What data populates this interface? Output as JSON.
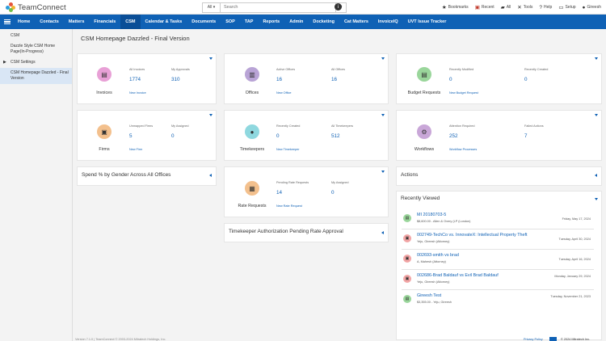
{
  "app": {
    "name": "TeamConnect"
  },
  "search": {
    "scope": "All",
    "placeholder": "Search"
  },
  "utils": [
    {
      "label": "Bookmarks",
      "icon": "star-icon"
    },
    {
      "label": "Recent",
      "icon": "recent-icon"
    },
    {
      "label": "All",
      "icon": "folder-icon"
    },
    {
      "label": "Tools",
      "icon": "tools-icon"
    },
    {
      "label": "Help",
      "icon": "question-icon"
    },
    {
      "label": "Setup",
      "icon": "monitor-icon"
    },
    {
      "label": "Gireesh",
      "icon": "user-icon"
    }
  ],
  "nav": [
    "Home",
    "Contacts",
    "Matters",
    "Financials",
    "CSM",
    "Calendar & Tasks",
    "Documents",
    "SOP",
    "TAP",
    "Reports",
    "Admin",
    "Docketing",
    "Cat Matters",
    "InvoiceIQ",
    "UVT Issue Tracker"
  ],
  "nav_active": "CSM",
  "sidebar": {
    "items": [
      {
        "label": "CSM"
      },
      {
        "label": "Dazzle Style CSM Home Page(In-Progress)"
      },
      {
        "label": "CSM Settings"
      },
      {
        "label": "CSM Homepage Dazzled - Final Version"
      }
    ]
  },
  "page": {
    "title": "CSM Homepage Dazzled - Final Version"
  },
  "tiles": {
    "invoices": {
      "name": "Invoices",
      "label1": "All Invoices",
      "value1": "1774",
      "label2": "My Approvals",
      "value2": "310",
      "link": "New Invoice",
      "color": "#e8a0d6"
    },
    "offices": {
      "name": "Offices",
      "label1": "Active Offices",
      "value1": "16",
      "label2": "All Offices",
      "value2": "16",
      "link": "New Office",
      "color": "#b9a4d6"
    },
    "budget": {
      "name": "Budget Requests",
      "label1": "Recently Modified",
      "value1": "0",
      "label2": "Recently Created",
      "value2": "0",
      "link": "New Budget Request",
      "color": "#9ad69b"
    },
    "firms": {
      "name": "Firms",
      "label1": "Unmapped Firms",
      "value1": "5",
      "label2": "My Assigned",
      "value2": "0",
      "link": "New Firm",
      "color": "#f3c08d"
    },
    "timekeepers": {
      "name": "Timekeepers",
      "label1": "Recently Created",
      "value1": "0",
      "label2": "All Timekeepers",
      "value2": "512",
      "link": "New Timekeeper",
      "color": "#8fd8df"
    },
    "workflows": {
      "name": "Workflows",
      "label1": "Attention Required",
      "value1": "252",
      "label2": "Failed Actions",
      "value2": "7",
      "link": "Workflow Processes",
      "color": "#c9a7d8"
    },
    "rates": {
      "name": "Rate Requests",
      "label1": "Pending Rate Requests",
      "value1": "14",
      "label2": "My Assigned",
      "value2": "0",
      "link": "New Rate Request",
      "color": "#f3c08d"
    }
  },
  "panels": {
    "spend": "Spend % by Gender Across All Offices",
    "tk_auth": "Timekeeper Authorization Pending Rate Approval",
    "actions": "Actions",
    "recent": "Recently Viewed"
  },
  "recent": [
    {
      "title": "MI 20180703-5",
      "sub": "$8,600.00 - Allen & Overy (LP (London)",
      "date": "Friday, May 17, 2024",
      "icon": "invoice-icon",
      "color": "#9ad69b"
    },
    {
      "title": "002749-TechCo vs. InnovateX: Intellectual Property Theft",
      "sub": "Yeju, Gireesh (Attorney)",
      "date": "Tuesday, April 30, 2024",
      "icon": "briefcase-icon",
      "color": "#f2a5a5"
    },
    {
      "title": "002693-smith vs brad",
      "sub": "A, Mahesh (Attorney)",
      "date": "Tuesday, April 16, 2024",
      "icon": "briefcase-icon",
      "color": "#f2a5a5"
    },
    {
      "title": "002686-Brad Baldauf vs Evil Brad Baldauf",
      "sub": "Yeju, Gireesh (Attorney)",
      "date": "Monday, January 29, 2024",
      "icon": "briefcase-icon",
      "color": "#f2a5a5"
    },
    {
      "title": "Gireesh Test",
      "sub": "$3,355.00 - Yeju, Gireesh",
      "date": "Tuesday, November 21, 2023",
      "icon": "invoice-icon",
      "color": "#9ad69b"
    }
  ],
  "footer": {
    "left": "Version 7.1.0 | TeamConnect © 2003-2024 Mitratech Holdings, Inc.",
    "privacy": "Privacy Policy",
    "right": "© 2024 Mitratech Inc."
  }
}
